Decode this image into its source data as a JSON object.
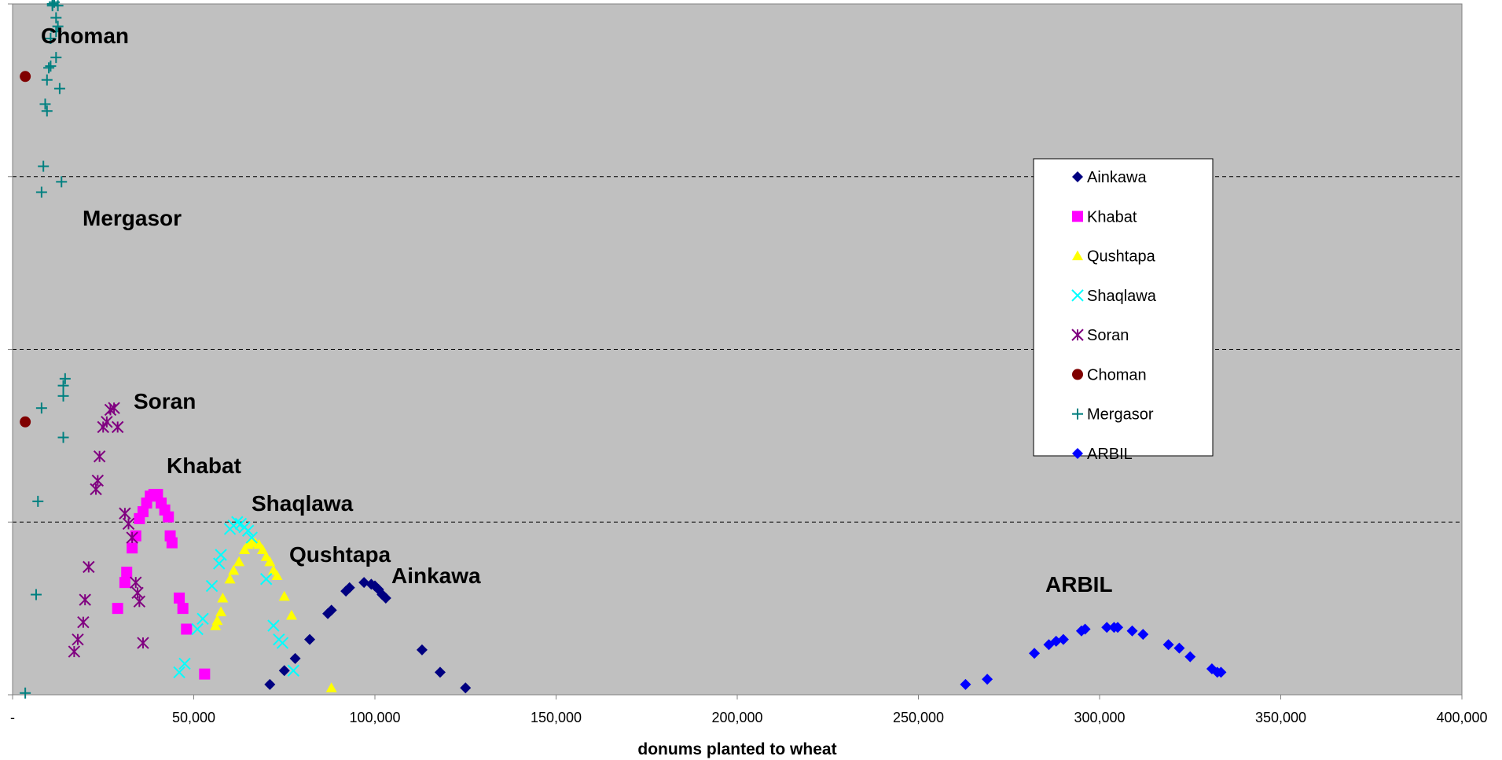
{
  "chart_data": {
    "type": "scatter",
    "xlabel": "donums planted to wheat",
    "ylabel": "",
    "xlim": [
      0,
      400000
    ],
    "ylim": [
      0,
      4
    ],
    "x_ticks": [
      0,
      50000,
      100000,
      150000,
      200000,
      250000,
      300000,
      350000,
      400000
    ],
    "x_tick_labels": [
      "-",
      "50,000",
      "100,000",
      "150,000",
      "200,000",
      "250,000",
      "300,000",
      "350,000",
      "400,000"
    ],
    "grid": "horizontal dashed",
    "background": "#c0c0c0",
    "legend_position": "right",
    "series": [
      {
        "name": "Ainkawa",
        "marker": "diamond",
        "color": "#000080",
        "points": [
          [
            71000,
            0.06
          ],
          [
            75000,
            0.14
          ],
          [
            78000,
            0.21
          ],
          [
            82000,
            0.32
          ],
          [
            87000,
            0.47
          ],
          [
            88000,
            0.49
          ],
          [
            92000,
            0.6
          ],
          [
            93000,
            0.62
          ],
          [
            97000,
            0.65
          ],
          [
            99000,
            0.64
          ],
          [
            100000,
            0.63
          ],
          [
            101000,
            0.61
          ],
          [
            102000,
            0.58
          ],
          [
            103000,
            0.56
          ],
          [
            113000,
            0.26
          ],
          [
            118000,
            0.13
          ],
          [
            125000,
            0.04
          ]
        ]
      },
      {
        "name": "Khabat",
        "marker": "square",
        "color": "#ff00ff",
        "points": [
          [
            29000,
            0.5
          ],
          [
            31000,
            0.65
          ],
          [
            31500,
            0.71
          ],
          [
            33000,
            0.85
          ],
          [
            34000,
            0.92
          ],
          [
            35000,
            1.02
          ],
          [
            36000,
            1.06
          ],
          [
            37000,
            1.11
          ],
          [
            38000,
            1.15
          ],
          [
            39000,
            1.16
          ],
          [
            40000,
            1.16
          ],
          [
            41000,
            1.11
          ],
          [
            42000,
            1.07
          ],
          [
            43000,
            1.03
          ],
          [
            43500,
            0.92
          ],
          [
            44000,
            0.88
          ],
          [
            46000,
            0.56
          ],
          [
            47000,
            0.5
          ],
          [
            48000,
            0.38
          ],
          [
            53000,
            0.12
          ]
        ]
      },
      {
        "name": "Qushtapa",
        "marker": "triangle",
        "color": "#ffff00",
        "points": [
          [
            56000,
            0.4
          ],
          [
            56500,
            0.43
          ],
          [
            57500,
            0.48
          ],
          [
            58000,
            0.56
          ],
          [
            60000,
            0.67
          ],
          [
            61000,
            0.72
          ],
          [
            62500,
            0.77
          ],
          [
            64000,
            0.84
          ],
          [
            65000,
            0.87
          ],
          [
            66000,
            0.88
          ],
          [
            67000,
            0.88
          ],
          [
            68000,
            0.87
          ],
          [
            69000,
            0.84
          ],
          [
            70000,
            0.8
          ],
          [
            71000,
            0.77
          ],
          [
            72000,
            0.72
          ],
          [
            73000,
            0.69
          ],
          [
            75000,
            0.57
          ],
          [
            77000,
            0.46
          ],
          [
            88000,
            0.04
          ]
        ]
      },
      {
        "name": "Shaqlawa",
        "marker": "x",
        "color": "#00ffff",
        "points": [
          [
            46000,
            0.13
          ],
          [
            47500,
            0.18
          ],
          [
            51000,
            0.38
          ],
          [
            52500,
            0.44
          ],
          [
            55000,
            0.63
          ],
          [
            57000,
            0.76
          ],
          [
            57500,
            0.81
          ],
          [
            60000,
            0.96
          ],
          [
            61000,
            0.98
          ],
          [
            62000,
            1.0
          ],
          [
            63000,
            0.99
          ],
          [
            64000,
            0.97
          ],
          [
            65000,
            0.95
          ],
          [
            66000,
            0.91
          ],
          [
            70000,
            0.67
          ],
          [
            72000,
            0.4
          ],
          [
            73500,
            0.32
          ],
          [
            74500,
            0.3
          ],
          [
            77500,
            0.14
          ]
        ]
      },
      {
        "name": "Soran",
        "marker": "star",
        "color": "#800080",
        "points": [
          [
            17000,
            0.25
          ],
          [
            18000,
            0.32
          ],
          [
            19500,
            0.42
          ],
          [
            20000,
            0.55
          ],
          [
            21000,
            0.74
          ],
          [
            23000,
            1.19
          ],
          [
            23500,
            1.24
          ],
          [
            24000,
            1.38
          ],
          [
            25000,
            1.55
          ],
          [
            26000,
            1.58
          ],
          [
            27000,
            1.65
          ],
          [
            28000,
            1.66
          ],
          [
            29000,
            1.55
          ],
          [
            31000,
            1.05
          ],
          [
            32000,
            0.99
          ],
          [
            33000,
            0.91
          ],
          [
            34000,
            0.65
          ],
          [
            34500,
            0.59
          ],
          [
            35000,
            0.54
          ],
          [
            36000,
            0.3
          ]
        ]
      },
      {
        "name": "Choman",
        "marker": "circle",
        "color": "#800000",
        "points": [
          [
            3500,
            3.58
          ],
          [
            3500,
            1.58
          ]
        ]
      },
      {
        "name": "Mergasor",
        "marker": "plus",
        "color": "#008080",
        "points": [
          [
            3500,
            0.01
          ],
          [
            6500,
            0.58
          ],
          [
            7000,
            1.12
          ],
          [
            8000,
            1.66
          ],
          [
            8000,
            2.91
          ],
          [
            8500,
            3.06
          ],
          [
            9000,
            3.42
          ],
          [
            9500,
            3.56
          ],
          [
            9500,
            3.38
          ],
          [
            10000,
            3.63
          ],
          [
            10500,
            3.64
          ],
          [
            10500,
            3.8
          ],
          [
            11000,
            4.0
          ],
          [
            11000,
            3.99
          ],
          [
            11500,
            4.01
          ],
          [
            12000,
            3.84
          ],
          [
            12000,
            3.69
          ],
          [
            12000,
            3.92
          ],
          [
            12500,
            3.87
          ],
          [
            12500,
            3.99
          ],
          [
            13000,
            3.51
          ],
          [
            13500,
            2.97
          ],
          [
            14000,
            1.49
          ],
          [
            14000,
            1.79
          ],
          [
            14000,
            1.73
          ],
          [
            14500,
            1.83
          ]
        ]
      },
      {
        "name": "ARBIL",
        "marker": "diamond",
        "color": "#0000ff",
        "points": [
          [
            263000,
            0.06
          ],
          [
            269000,
            0.09
          ],
          [
            282000,
            0.24
          ],
          [
            286000,
            0.29
          ],
          [
            288000,
            0.31
          ],
          [
            290000,
            0.32
          ],
          [
            295000,
            0.37
          ],
          [
            296000,
            0.38
          ],
          [
            302000,
            0.39
          ],
          [
            304000,
            0.39
          ],
          [
            305000,
            0.39
          ],
          [
            309000,
            0.37
          ],
          [
            312000,
            0.35
          ],
          [
            319000,
            0.29
          ],
          [
            322000,
            0.27
          ],
          [
            325000,
            0.22
          ],
          [
            331000,
            0.15
          ],
          [
            332500,
            0.13
          ],
          [
            333500,
            0.13
          ]
        ]
      }
    ],
    "annotations": [
      {
        "text": "Choman"
      },
      {
        "text": "Mergasor"
      },
      {
        "text": "Soran"
      },
      {
        "text": "Khabat"
      },
      {
        "text": "Shaqlawa"
      },
      {
        "text": "Qushtapa"
      },
      {
        "text": "Ainkawa"
      },
      {
        "text": "ARBIL"
      }
    ]
  }
}
